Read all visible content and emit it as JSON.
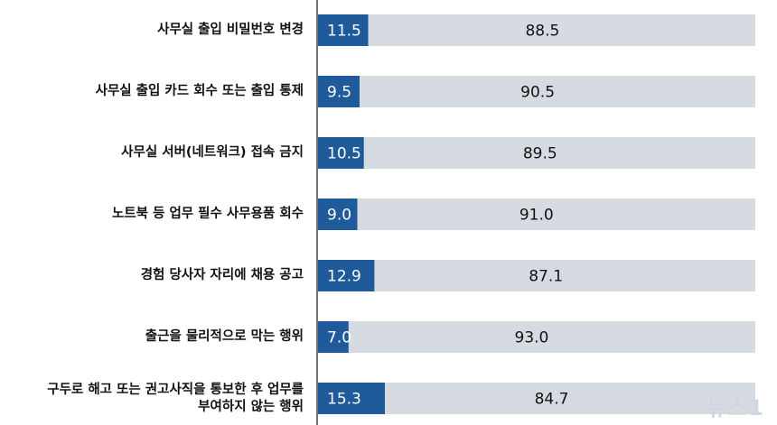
{
  "chart_data": {
    "type": "bar",
    "orientation": "horizontal",
    "stacked": true,
    "categories": [
      "사무실 출입 비밀번호 변경",
      "사무실 출입 카드 회수 또는 출입 통제",
      "사무실 서버(네트워크) 접속 금지",
      "노트북 등 업무 필수 사무용품 회수",
      "경험 당사자 자리에 채용 공고",
      "출근을 물리적으로 막는 행위",
      "구두로 해고 또는 권고사직을 통보한 후 업무를\n부여하지 않는 행위"
    ],
    "series": [
      {
        "values": [
          11.5,
          9.5,
          10.5,
          9.0,
          12.9,
          7.0,
          15.3
        ],
        "color": "#1f5a9a"
      },
      {
        "values": [
          88.5,
          90.5,
          89.5,
          91.0,
          87.1,
          93.0,
          84.7
        ],
        "color": "#d6dbe2"
      }
    ],
    "labels_primary": [
      "11.5",
      "9.5",
      "10.5",
      "9.0",
      "12.9",
      "7.0",
      "15.3"
    ],
    "labels_secondary": [
      "88.5",
      "90.5",
      "89.5",
      "91.0",
      "87.1",
      "93.0",
      "84.7"
    ],
    "xlim": [
      0,
      100
    ],
    "grid": false,
    "legend": "none"
  },
  "watermark": "뉴스1"
}
